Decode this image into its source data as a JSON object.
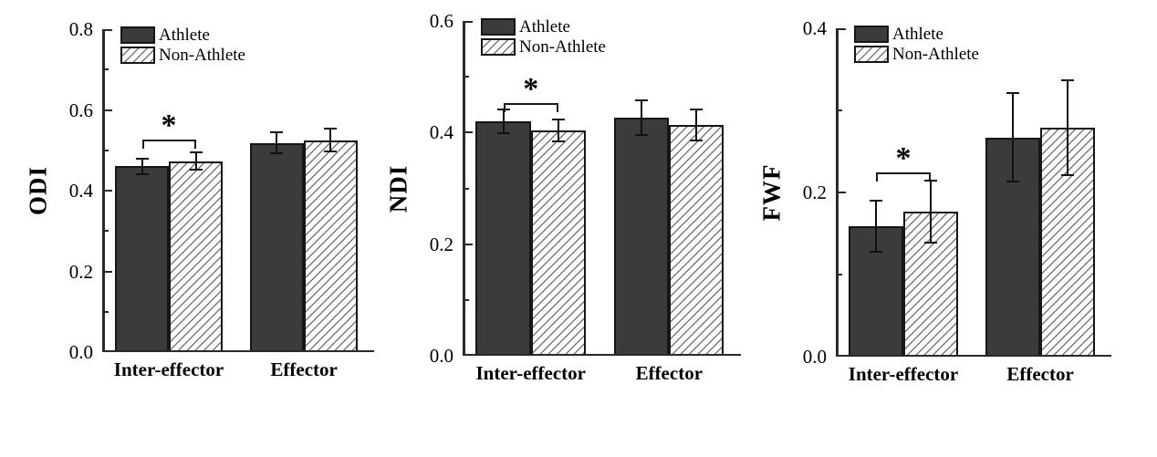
{
  "figure": {
    "background": "#ffffff",
    "colors": {
      "athlete_fill": "#3b3b3b",
      "bar_border": "#161616",
      "hatch_line": "#7a7a7a",
      "axis": "#2a2a2a",
      "text": "#000000"
    }
  },
  "chart_data": [
    {
      "type": "bar",
      "title": "",
      "xlabel": "",
      "ylabel": "ODI",
      "ylim": [
        0,
        0.8
      ],
      "ytick_step": 0.2,
      "minor_tick_step": 0.1,
      "grid": false,
      "legend_position": "top-left",
      "legend": [
        "Athlete",
        "Non-Athlete"
      ],
      "categories": [
        "Inter-effector",
        "Effector"
      ],
      "series": [
        {
          "name": "Athlete",
          "values": [
            0.46,
            0.518
          ],
          "errors": [
            0.021,
            0.028
          ]
        },
        {
          "name": "Non-Athlete",
          "values": [
            0.473,
            0.525
          ],
          "errors": [
            0.024,
            0.031
          ]
        }
      ],
      "significance": {
        "category_index": 0,
        "label": "*",
        "bracket_y": 0.527
      }
    },
    {
      "type": "bar",
      "title": "",
      "xlabel": "",
      "ylabel": "NDI",
      "ylim": [
        0,
        0.6
      ],
      "ytick_step": 0.2,
      "minor_tick_step": 0.1,
      "grid": false,
      "legend_position": "top-left",
      "legend": [
        "Athlete",
        "Non-Athlete"
      ],
      "categories": [
        "Inter-effector",
        "Effector"
      ],
      "series": [
        {
          "name": "Athlete",
          "values": [
            0.42,
            0.427
          ],
          "errors": [
            0.023,
            0.033
          ]
        },
        {
          "name": "Non-Athlete",
          "values": [
            0.404,
            0.414
          ],
          "errors": [
            0.021,
            0.029
          ]
        }
      ],
      "significance": {
        "category_index": 0,
        "label": "*",
        "bracket_y": 0.453
      }
    },
    {
      "type": "bar",
      "title": "",
      "xlabel": "",
      "ylabel": "FWF",
      "ylim": [
        0,
        0.4
      ],
      "ytick_step": 0.2,
      "minor_tick_step": 0.1,
      "grid": false,
      "legend_position": "top-left",
      "legend": [
        "Athlete",
        "Non-Athlete"
      ],
      "categories": [
        "Inter-effector",
        "Effector"
      ],
      "series": [
        {
          "name": "Athlete",
          "values": [
            0.159,
            0.267
          ],
          "errors": [
            0.032,
            0.055
          ]
        },
        {
          "name": "Non-Athlete",
          "values": [
            0.177,
            0.279
          ],
          "errors": [
            0.039,
            0.059
          ]
        }
      ],
      "significance": {
        "category_index": 0,
        "label": "*",
        "bracket_y": 0.225
      }
    }
  ]
}
